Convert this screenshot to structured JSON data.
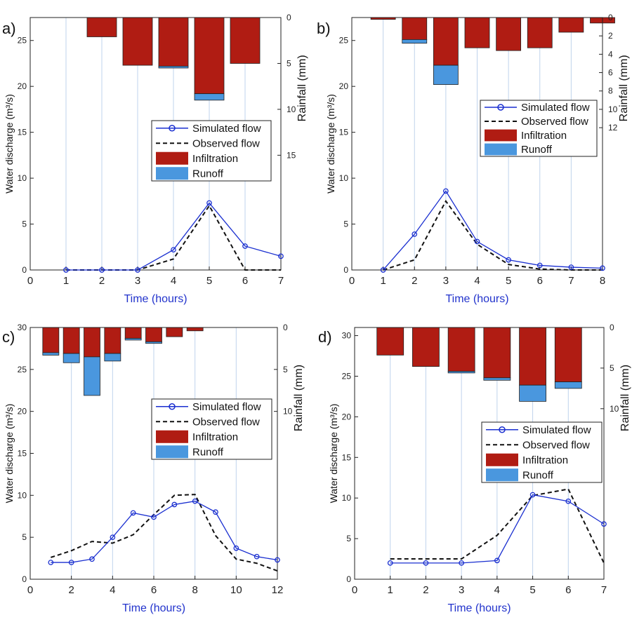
{
  "colors": {
    "simulated": "#1a2fd0",
    "observed": "#111111",
    "infiltration": "#b01c13",
    "runoff": "#4a97de",
    "grid": "#bfd3ec",
    "xlabel": "#2233cc"
  },
  "legend": [
    "Simulated flow",
    "Observed flow",
    "Infiltration",
    "Runoff"
  ],
  "chart_data": [
    {
      "type": "line",
      "panel_label": "a)",
      "xlabel": "Time (hours)",
      "ylabel": "Water discharge (m³/s)",
      "y2label": "Rainfall (mm)",
      "xlim": [
        0,
        7
      ],
      "ylim": [
        0,
        27.5
      ],
      "y2lim": [
        0,
        27.5
      ],
      "x_ticks": [
        0,
        1,
        2,
        3,
        4,
        5,
        6,
        7
      ],
      "y_ticks": [
        0,
        5,
        10,
        15,
        20,
        25
      ],
      "y2_ticks": [
        0,
        5,
        10,
        15
      ],
      "x_grid": [
        1,
        2,
        3,
        4,
        5,
        6,
        7
      ],
      "legend_position": "middle-right",
      "series": [
        {
          "name": "Simulated flow",
          "x": [
            1,
            2,
            3,
            4,
            5,
            6,
            7
          ],
          "y": [
            0,
            0,
            0,
            2.2,
            7.3,
            2.6,
            1.5
          ]
        },
        {
          "name": "Observed flow",
          "x": [
            1,
            2,
            3,
            4,
            5,
            6,
            7
          ],
          "y": [
            0,
            0,
            0,
            1.2,
            7.0,
            0,
            0
          ]
        }
      ],
      "rainfall": {
        "x": [
          2,
          3,
          4,
          5,
          6
        ],
        "infiltration": [
          2.1,
          5.2,
          5.3,
          8.3,
          5.0
        ],
        "runoff": [
          0,
          0,
          0.2,
          0.7,
          0
        ]
      }
    },
    {
      "type": "line",
      "panel_label": "b)",
      "xlabel": "Time (hours)",
      "ylabel": "Water discharge (m³/s)",
      "y2label": "Rainfall (mm)",
      "xlim": [
        0,
        8
      ],
      "ylim": [
        0,
        27.5
      ],
      "y2lim": [
        0,
        27.5
      ],
      "x_ticks": [
        0,
        1,
        2,
        3,
        4,
        5,
        6,
        7,
        8
      ],
      "y_ticks": [
        0,
        5,
        10,
        15,
        20,
        25
      ],
      "y2_ticks": [
        0,
        2,
        4,
        6,
        8,
        10,
        12
      ],
      "x_grid": [
        1,
        2,
        3,
        4,
        5,
        6,
        7
      ],
      "legend_position": "middle-right",
      "series": [
        {
          "name": "Simulated flow",
          "x": [
            1,
            2,
            3,
            4,
            5,
            6,
            7,
            8
          ],
          "y": [
            0,
            3.9,
            8.6,
            3.1,
            1.1,
            0.5,
            0.3,
            0.2
          ]
        },
        {
          "name": "Observed flow",
          "x": [
            1,
            2,
            3,
            4,
            5,
            6,
            7,
            8
          ],
          "y": [
            0,
            1.1,
            7.5,
            2.8,
            0.6,
            0.1,
            0,
            0
          ]
        }
      ],
      "rainfall": {
        "x": [
          1,
          2,
          3,
          4,
          5,
          6,
          7,
          8
        ],
        "infiltration": [
          0.2,
          2.4,
          5.2,
          3.3,
          3.6,
          3.3,
          1.6,
          0.6
        ],
        "runoff": [
          0,
          0.4,
          2.1,
          0,
          0,
          0,
          0,
          0
        ]
      }
    },
    {
      "type": "line",
      "panel_label": "c)",
      "xlabel": "Time (hours)",
      "ylabel": "Water discharge (m³/s)",
      "y2label": "Rainfall (mm)",
      "xlim": [
        0,
        12
      ],
      "ylim": [
        0,
        30
      ],
      "y2lim": [
        0,
        30
      ],
      "x_ticks": [
        0,
        2,
        4,
        6,
        8,
        10,
        12
      ],
      "y_ticks": [
        0,
        5,
        10,
        15,
        20,
        25,
        30
      ],
      "y2_ticks": [
        0,
        5,
        10
      ],
      "x_grid": [
        2,
        4,
        6,
        8,
        10
      ],
      "legend_position": "middle-right",
      "series": [
        {
          "name": "Simulated flow",
          "x": [
            1,
            2,
            3,
            4,
            5,
            6,
            7,
            8,
            9,
            10,
            11,
            12
          ],
          "y": [
            2.0,
            2.0,
            2.4,
            5.0,
            7.9,
            7.4,
            8.9,
            9.3,
            8.0,
            3.7,
            2.7,
            2.3
          ]
        },
        {
          "name": "Observed flow",
          "x": [
            1,
            2,
            3,
            4,
            5,
            6,
            7,
            8,
            9,
            10,
            11,
            12
          ],
          "y": [
            2.6,
            3.4,
            4.5,
            4.3,
            5.3,
            7.7,
            10.0,
            10.1,
            5.2,
            2.4,
            1.9,
            1.0
          ]
        }
      ],
      "rainfall": {
        "x": [
          1,
          2,
          3,
          4,
          5,
          6,
          7,
          8
        ],
        "infiltration": [
          3.0,
          3.1,
          3.5,
          3.1,
          1.3,
          1.7,
          1.1,
          0.4
        ],
        "runoff": [
          0.3,
          1.1,
          4.6,
          0.9,
          0.2,
          0.2,
          0,
          0
        ]
      }
    },
    {
      "type": "line",
      "panel_label": "d)",
      "xlabel": "Time (hours)",
      "ylabel": "Water discharge (m³/s)",
      "y2label": "Rainfall (mm)",
      "xlim": [
        0,
        7
      ],
      "ylim": [
        0,
        31
      ],
      "y2lim": [
        0,
        31
      ],
      "x_ticks": [
        0,
        1,
        2,
        3,
        4,
        5,
        6,
        7
      ],
      "y_ticks": [
        0,
        5,
        10,
        15,
        20,
        25,
        30
      ],
      "y2_ticks": [
        0,
        5,
        10
      ],
      "x_grid": [
        1,
        2,
        3,
        4,
        5,
        6
      ],
      "legend_position": "middle-right",
      "series": [
        {
          "name": "Simulated flow",
          "x": [
            1,
            2,
            3,
            4,
            5,
            6,
            7
          ],
          "y": [
            2.0,
            2.0,
            2.0,
            2.3,
            10.4,
            9.6,
            6.8
          ]
        },
        {
          "name": "Observed flow",
          "x": [
            1,
            2,
            3,
            4,
            5,
            6,
            7
          ],
          "y": [
            2.5,
            2.5,
            2.5,
            5.4,
            10.3,
            11.1,
            2.0
          ]
        }
      ],
      "rainfall": {
        "x": [
          1,
          2,
          3,
          4,
          5,
          6
        ],
        "infiltration": [
          3.4,
          4.8,
          5.4,
          6.2,
          7.1,
          6.7
        ],
        "runoff": [
          0,
          0,
          0.2,
          0.3,
          2.0,
          0.8
        ]
      }
    }
  ]
}
